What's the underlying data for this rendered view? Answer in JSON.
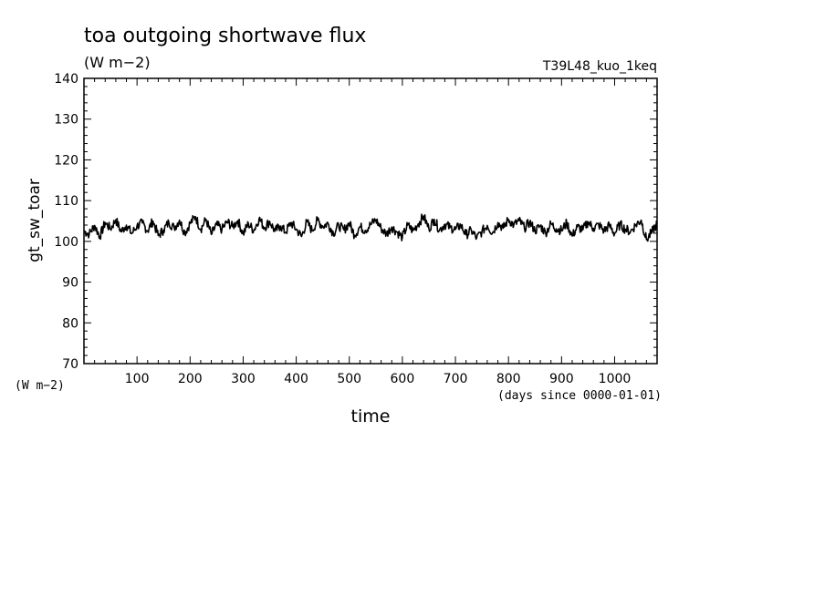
{
  "chart_data": {
    "type": "line",
    "title": "toa outgoing shortwave flux",
    "subtitle": "(W m−2)",
    "experiment": "T39L48_kuo_1keq",
    "ylabel": "gt_sw_toar",
    "yunits": "(W m−2)",
    "xlabel": "time",
    "xunits": "(days since 0000-01-01)",
    "xlim": [
      0,
      1080
    ],
    "ylim": [
      70,
      140
    ],
    "xticks": [
      100,
      200,
      300,
      400,
      500,
      600,
      700,
      800,
      900,
      1000
    ],
    "yticks": [
      70,
      80,
      90,
      100,
      110,
      120,
      130,
      140
    ],
    "grid": false,
    "series": [
      {
        "color": "#000000",
        "x": [
          0,
          10,
          20,
          30,
          40,
          50,
          60,
          70,
          80,
          90,
          100,
          110,
          120,
          130,
          140,
          150,
          160,
          170,
          180,
          190,
          200,
          210,
          220,
          230,
          240,
          250,
          260,
          270,
          280,
          290,
          300,
          310,
          320,
          330,
          340,
          350,
          360,
          370,
          380,
          390,
          400,
          410,
          420,
          430,
          440,
          450,
          460,
          470,
          480,
          490,
          500,
          510,
          520,
          530,
          540,
          550,
          560,
          570,
          580,
          590,
          600,
          610,
          620,
          630,
          640,
          650,
          660,
          670,
          680,
          690,
          700,
          710,
          720,
          730,
          740,
          750,
          760,
          770,
          780,
          790,
          800,
          810,
          820,
          830,
          840,
          850,
          860,
          870,
          880,
          890,
          900,
          910,
          920,
          930,
          940,
          950,
          960,
          970,
          980,
          990,
          1000,
          1010,
          1020,
          1030,
          1040,
          1050,
          1060,
          1070,
          1080
        ],
        "y": [
          102.5,
          101.8,
          103.9,
          101.2,
          104.6,
          103.1,
          105.3,
          102.4,
          104.0,
          101.9,
          103.8,
          104.5,
          102.6,
          105.0,
          101.4,
          102.8,
          104.7,
          103.3,
          105.2,
          102.1,
          104.4,
          106.1,
          103.0,
          105.4,
          101.7,
          104.1,
          102.9,
          104.8,
          103.6,
          105.1,
          101.9,
          104.3,
          102.7,
          105.6,
          103.4,
          104.9,
          102.5,
          103.8,
          102.2,
          104.6,
          103.0,
          101.2,
          104.8,
          102.6,
          105.2,
          103.7,
          104.4,
          102.0,
          103.9,
          102.8,
          104.5,
          101.5,
          103.6,
          102.7,
          104.1,
          105.3,
          103.2,
          101.8,
          103.5,
          102.3,
          101.0,
          104.0,
          102.6,
          104.3,
          106.2,
          103.1,
          105.4,
          102.8,
          104.2,
          103.4,
          102.9,
          104.0,
          101.6,
          102.7,
          100.8,
          102.4,
          103.9,
          102.1,
          104.6,
          103.2,
          105.4,
          104.0,
          105.1,
          103.3,
          104.7,
          102.6,
          103.8,
          102.1,
          104.3,
          103.1,
          102.7,
          104.5,
          101.3,
          103.6,
          102.8,
          104.8,
          103.2,
          104.1,
          102.6,
          103.9,
          101.9,
          104.2,
          103.0,
          102.4,
          104.1,
          105.2,
          100.4,
          102.2,
          104.3
        ]
      }
    ]
  }
}
